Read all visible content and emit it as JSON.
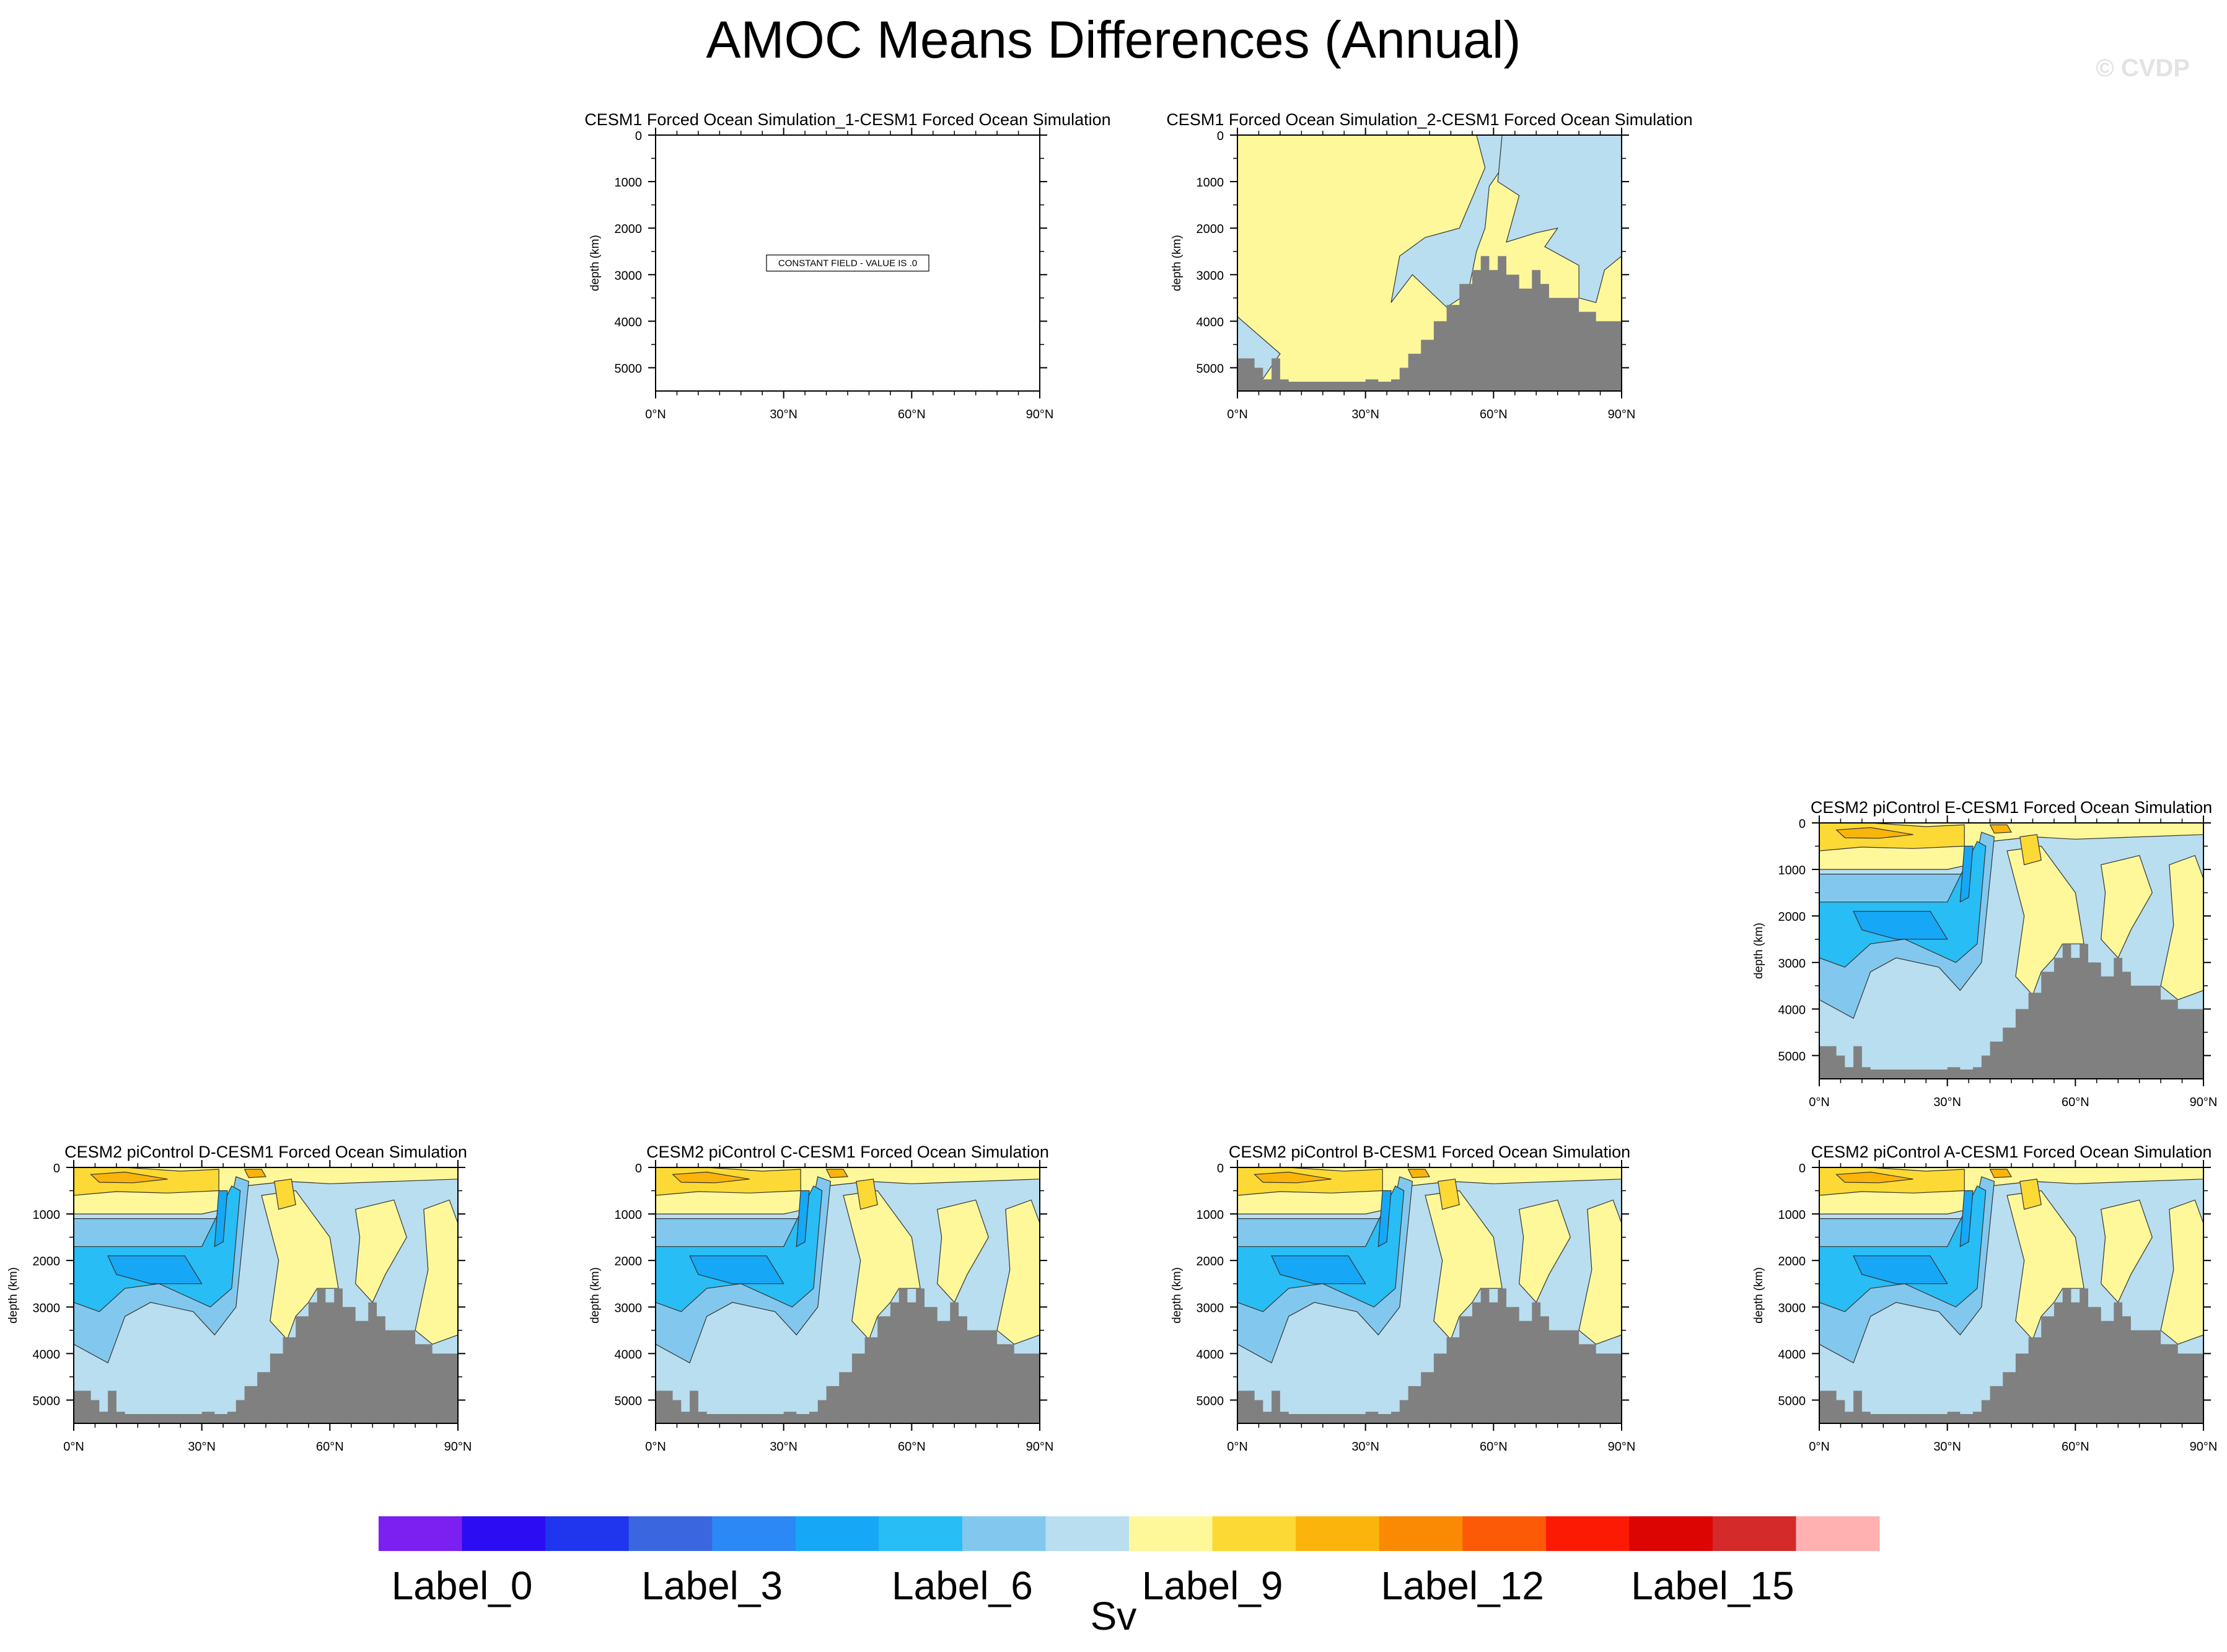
{
  "title": "AMOC Means Differences (Annual)",
  "watermark": "© CVDP",
  "colors": {
    "land": "#808080",
    "levels": [
      "#7b20f0",
      "#2c0cf2",
      "#1f35ee",
      "#3a66e0",
      "#2b88f5",
      "#16a7f6",
      "#28bdf4",
      "#82c8ee",
      "#b8def0",
      "#fef89a",
      "#fcd934",
      "#fab40c",
      "#fa8a03",
      "#fc5a06",
      "#fc1a05",
      "#dd0404",
      "#d42a2a",
      "#ffb0b0"
    ]
  },
  "colorbar": {
    "labels": [
      "Label_0",
      "Label_3",
      "Label_6",
      "Label_9",
      "Label_12",
      "Label_15"
    ],
    "label_positions": [
      1,
      4,
      7,
      10,
      13,
      16
    ],
    "unit": "Sv"
  },
  "chart_data": [
    {
      "type": "heatmap",
      "title": "CESM1 Forced Ocean Simulation_1-CESM1 Forced Ocean Simulation",
      "ylabel": "depth (km)",
      "xticks": [
        "0°N",
        "30°N",
        "60°N",
        "90°N"
      ],
      "yticks": [
        "0",
        "1000",
        "2000",
        "3000",
        "4000",
        "5000"
      ],
      "xlim": [
        0,
        90
      ],
      "ylim": [
        5500,
        0
      ],
      "constant_field": true,
      "message": "CONSTANT FIELD - VALUE IS .0"
    },
    {
      "type": "heatmap",
      "title": "CESM1 Forced Ocean Simulation_2-CESM1 Forced Ocean Simulation",
      "ylabel": "depth (km)",
      "xticks": [
        "0°N",
        "30°N",
        "60°N",
        "90°N"
      ],
      "yticks": [
        "0",
        "1000",
        "2000",
        "3000",
        "4000",
        "5000"
      ],
      "xlim": [
        0,
        90
      ],
      "ylim": [
        5500,
        0
      ],
      "pattern": "sim2"
    },
    {
      "type": "heatmap",
      "title": "CESM2 piControl E-CESM1 Forced Ocean Simulation",
      "ylabel": "depth (km)",
      "xticks": [
        "0°N",
        "30°N",
        "60°N",
        "90°N"
      ],
      "yticks": [
        "0",
        "1000",
        "2000",
        "3000",
        "4000",
        "5000"
      ],
      "xlim": [
        0,
        90
      ],
      "ylim": [
        5500,
        0
      ],
      "pattern": "amoc"
    },
    {
      "type": "heatmap",
      "title": "CESM2 piControl D-CESM1 Forced Ocean Simulation",
      "ylabel": "depth (km)",
      "xticks": [
        "0°N",
        "30°N",
        "60°N",
        "90°N"
      ],
      "yticks": [
        "0",
        "1000",
        "2000",
        "3000",
        "4000",
        "5000"
      ],
      "xlim": [
        0,
        90
      ],
      "ylim": [
        5500,
        0
      ],
      "pattern": "amoc"
    },
    {
      "type": "heatmap",
      "title": "CESM2 piControl C-CESM1 Forced Ocean Simulation",
      "ylabel": "depth (km)",
      "xticks": [
        "0°N",
        "30°N",
        "60°N",
        "90°N"
      ],
      "yticks": [
        "0",
        "1000",
        "2000",
        "3000",
        "4000",
        "5000"
      ],
      "xlim": [
        0,
        90
      ],
      "ylim": [
        5500,
        0
      ],
      "pattern": "amoc"
    },
    {
      "type": "heatmap",
      "title": "CESM2 piControl B-CESM1 Forced Ocean Simulation",
      "ylabel": "depth (km)",
      "xticks": [
        "0°N",
        "30°N",
        "60°N",
        "90°N"
      ],
      "yticks": [
        "0",
        "1000",
        "2000",
        "3000",
        "4000",
        "5000"
      ],
      "xlim": [
        0,
        90
      ],
      "ylim": [
        5500,
        0
      ],
      "pattern": "amoc"
    },
    {
      "type": "heatmap",
      "title": "CESM2 piControl A-CESM1 Forced Ocean Simulation",
      "ylabel": "depth (km)",
      "xticks": [
        "0°N",
        "30°N",
        "60°N",
        "90°N"
      ],
      "yticks": [
        "0",
        "1000",
        "2000",
        "3000",
        "4000",
        "5000"
      ],
      "xlim": [
        0,
        90
      ],
      "ylim": [
        5500,
        0
      ],
      "pattern": "amoc"
    }
  ]
}
